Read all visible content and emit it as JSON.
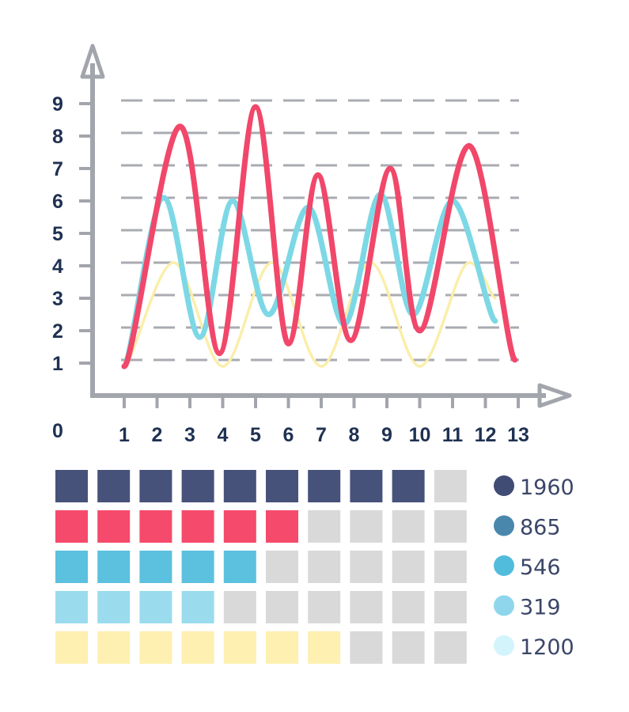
{
  "chart_data": [
    {
      "type": "line",
      "xlim": [
        0,
        13
      ],
      "ylim": [
        0,
        9
      ],
      "x_ticks": [
        "1",
        "2",
        "3",
        "4",
        "5",
        "6",
        "7",
        "8",
        "9",
        "10",
        "11",
        "12",
        "13"
      ],
      "y_ticks": [
        "0",
        "1",
        "2",
        "3",
        "4",
        "5",
        "6",
        "7",
        "8",
        "9"
      ],
      "grid": true,
      "grid_style": "dashed horizontal",
      "series": [
        {
          "color": "#f1476a",
          "points": [
            [
              1,
              0.9
            ],
            [
              2.7,
              8.3
            ],
            [
              3.9,
              1.3
            ],
            [
              5.0,
              8.9
            ],
            [
              6.0,
              1.6
            ],
            [
              6.9,
              6.8
            ],
            [
              7.9,
              1.7
            ],
            [
              9.1,
              7.0
            ],
            [
              10.0,
              2.0
            ],
            [
              11.5,
              7.7
            ],
            [
              12.9,
              1.1
            ]
          ]
        },
        {
          "color": "#7dd8e6",
          "points": [
            [
              1,
              0.9
            ],
            [
              2.2,
              6.1
            ],
            [
              3.3,
              1.8
            ],
            [
              4.3,
              6.0
            ],
            [
              5.4,
              2.5
            ],
            [
              6.6,
              5.8
            ],
            [
              7.7,
              2.2
            ],
            [
              8.8,
              6.2
            ],
            [
              9.8,
              2.5
            ],
            [
              11.0,
              6.0
            ],
            [
              12.3,
              2.3
            ]
          ]
        },
        {
          "color": "#fbeeaa",
          "points": [
            [
              1,
              0.9
            ],
            [
              2.5,
              4.1
            ],
            [
              4.0,
              0.9
            ],
            [
              5.5,
              4.1
            ],
            [
              7.0,
              0.9
            ],
            [
              8.5,
              4.1
            ],
            [
              10.0,
              0.9
            ],
            [
              11.5,
              4.1
            ],
            [
              12.3,
              3.0
            ]
          ]
        }
      ]
    },
    {
      "type": "waffle",
      "total_per_row": 10,
      "empty_color": "#d9d9d9",
      "rows": [
        {
          "filled": 9,
          "color": "#46527a"
        },
        {
          "filled": 6,
          "color": "#f54a6b"
        },
        {
          "filled": 5,
          "color": "#5bc1de"
        },
        {
          "filled": 4,
          "color": "#9adcee"
        },
        {
          "filled": 7,
          "color": "#fdf0b0"
        }
      ]
    }
  ],
  "legend": [
    {
      "label": "1960",
      "color": "#414c74"
    },
    {
      "label": "865",
      "color": "#4a87ad"
    },
    {
      "label": "546",
      "color": "#52bcdc"
    },
    {
      "label": "319",
      "color": "#8fd6ec"
    },
    {
      "label": "1200",
      "color": "#d4f4fb"
    }
  ]
}
